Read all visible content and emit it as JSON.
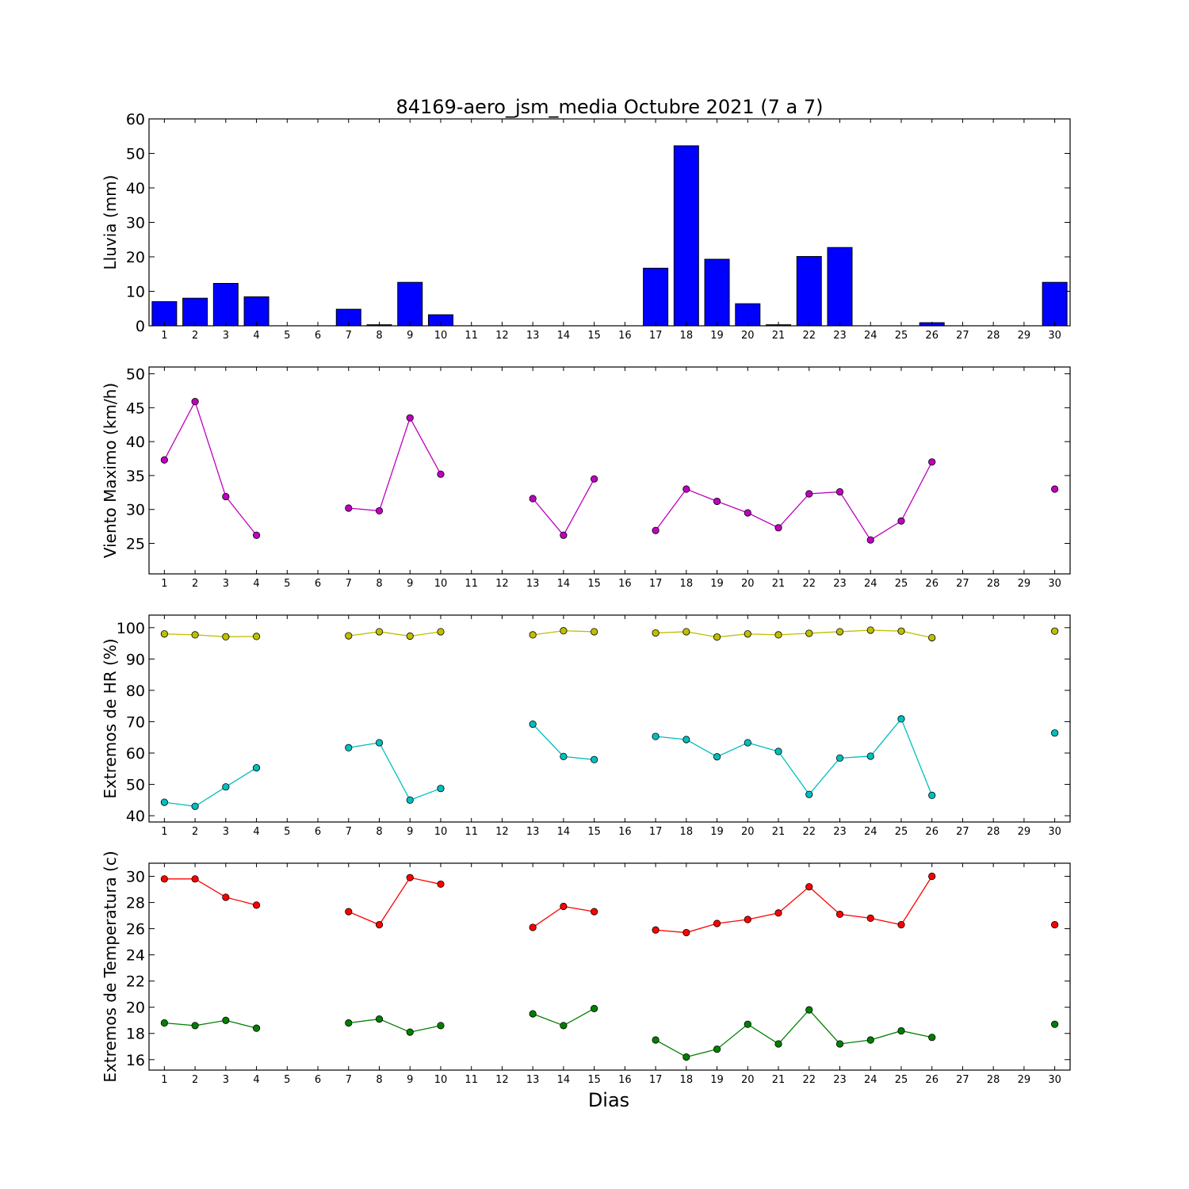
{
  "figure": {
    "title": "84169-aero_jsm_media Octubre 2021  (7 a 7)",
    "xlabel": "Dias"
  },
  "chart_data": [
    {
      "type": "bar",
      "ylabel": "Lluvia (mm)",
      "ylim": [
        0,
        60
      ],
      "yticks": [
        0,
        10,
        20,
        30,
        40,
        50,
        60
      ],
      "xticks": [
        "1",
        "2",
        "3",
        "4",
        "5",
        "6",
        "7",
        "8",
        "9",
        "10",
        "11",
        "12",
        "13",
        "14",
        "15",
        "16",
        "17",
        "18",
        "19",
        "20",
        "21",
        "22",
        "23",
        "24",
        "25",
        "26",
        "27",
        "28",
        "29",
        "30"
      ],
      "series": [
        {
          "color": "#0000ff",
          "x": [
            1,
            2,
            3,
            4,
            7,
            8,
            9,
            10,
            17,
            18,
            19,
            20,
            21,
            22,
            23,
            26,
            30
          ],
          "values": [
            7,
            8,
            12.3,
            8.4,
            4.8,
            0.3,
            12.6,
            3.2,
            16.7,
            52.2,
            19.3,
            6.4,
            0.3,
            20.1,
            22.7,
            0.9,
            12.6
          ]
        }
      ]
    },
    {
      "type": "line",
      "ylabel": "Viento Maximo (km/h)",
      "ylim": [
        20.5,
        51
      ],
      "yticks": [
        25,
        30,
        35,
        40,
        45,
        50
      ],
      "xticks": [
        "1",
        "2",
        "3",
        "4",
        "5",
        "6",
        "7",
        "8",
        "9",
        "10",
        "11",
        "12",
        "13",
        "14",
        "15",
        "16",
        "17",
        "18",
        "19",
        "20",
        "21",
        "22",
        "23",
        "24",
        "25",
        "26",
        "27",
        "28",
        "29",
        "30"
      ],
      "series": [
        {
          "color": "#bf00bf",
          "x": [
            1,
            2,
            3,
            4,
            null,
            7,
            8,
            9,
            10,
            null,
            13,
            14,
            15,
            null,
            17,
            18,
            19,
            20,
            21,
            22,
            23,
            24,
            25,
            26,
            null,
            30
          ],
          "values": [
            37.3,
            45.9,
            31.9,
            26.2,
            null,
            30.2,
            29.8,
            43.5,
            35.2,
            null,
            31.6,
            26.2,
            34.5,
            null,
            26.9,
            33,
            31.2,
            29.5,
            27.3,
            32.3,
            32.6,
            25.5,
            28.3,
            37,
            null,
            33
          ]
        }
      ]
    },
    {
      "type": "line",
      "ylabel": "Extremos de HR (%)",
      "ylim": [
        38,
        104
      ],
      "yticks": [
        40,
        50,
        60,
        70,
        80,
        90,
        100
      ],
      "xticks": [
        "1",
        "2",
        "3",
        "4",
        "5",
        "6",
        "7",
        "8",
        "9",
        "10",
        "11",
        "12",
        "13",
        "14",
        "15",
        "16",
        "17",
        "18",
        "19",
        "20",
        "21",
        "22",
        "23",
        "24",
        "25",
        "26",
        "27",
        "28",
        "29",
        "30"
      ],
      "series": [
        {
          "color": "#bfbf00",
          "x": [
            1,
            2,
            3,
            4,
            null,
            7,
            8,
            9,
            10,
            null,
            13,
            14,
            15,
            null,
            17,
            18,
            19,
            20,
            21,
            22,
            23,
            24,
            25,
            26,
            null,
            30
          ],
          "values": [
            98,
            97.7,
            97.1,
            97.2,
            null,
            97.4,
            98.7,
            97.3,
            98.7,
            null,
            97.7,
            99,
            98.7,
            null,
            98.3,
            98.7,
            97,
            98,
            97.7,
            98.2,
            98.7,
            99.2,
            98.9,
            96.8,
            null,
            98.9
          ]
        },
        {
          "color": "#00bfbf",
          "x": [
            1,
            2,
            3,
            4,
            null,
            7,
            8,
            9,
            10,
            null,
            13,
            14,
            15,
            null,
            17,
            18,
            19,
            20,
            21,
            22,
            23,
            24,
            25,
            26,
            null,
            30
          ],
          "values": [
            44.3,
            43,
            49.2,
            55.3,
            null,
            61.7,
            63.3,
            45,
            48.7,
            null,
            69.2,
            58.9,
            57.9,
            null,
            65.3,
            64.3,
            58.8,
            63.3,
            60.5,
            46.8,
            58.4,
            59,
            70.9,
            46.5,
            null,
            66.4
          ]
        }
      ]
    },
    {
      "type": "line",
      "ylabel": "Extremos de Temperatura (c)",
      "ylim": [
        15.2,
        31
      ],
      "yticks": [
        16,
        18,
        20,
        22,
        24,
        26,
        28,
        30
      ],
      "xticks": [
        "1",
        "2",
        "3",
        "4",
        "5",
        "6",
        "7",
        "8",
        "9",
        "10",
        "11",
        "12",
        "13",
        "14",
        "15",
        "16",
        "17",
        "18",
        "19",
        "20",
        "21",
        "22",
        "23",
        "24",
        "25",
        "26",
        "27",
        "28",
        "29",
        "30"
      ],
      "series": [
        {
          "color": "#ff0000",
          "x": [
            1,
            2,
            3,
            4,
            null,
            7,
            8,
            9,
            10,
            null,
            13,
            14,
            15,
            null,
            17,
            18,
            19,
            20,
            21,
            22,
            23,
            24,
            25,
            26,
            null,
            30
          ],
          "values": [
            29.8,
            29.8,
            28.4,
            27.8,
            null,
            27.3,
            26.3,
            29.9,
            29.4,
            null,
            26.1,
            27.7,
            27.3,
            null,
            25.9,
            25.7,
            26.4,
            26.7,
            27.2,
            29.2,
            27.1,
            26.8,
            26.3,
            30,
            null,
            26.3
          ]
        },
        {
          "color": "#007f00",
          "x": [
            1,
            2,
            3,
            4,
            null,
            7,
            8,
            9,
            10,
            null,
            13,
            14,
            15,
            null,
            17,
            18,
            19,
            20,
            21,
            22,
            23,
            24,
            25,
            26,
            null,
            30
          ],
          "values": [
            18.8,
            18.6,
            19,
            18.4,
            null,
            18.8,
            19.1,
            18.1,
            18.6,
            null,
            19.5,
            18.6,
            19.9,
            null,
            17.5,
            16.2,
            16.8,
            18.7,
            17.2,
            19.8,
            17.2,
            17.5,
            18.2,
            17.7,
            null,
            18.7
          ]
        }
      ]
    }
  ]
}
